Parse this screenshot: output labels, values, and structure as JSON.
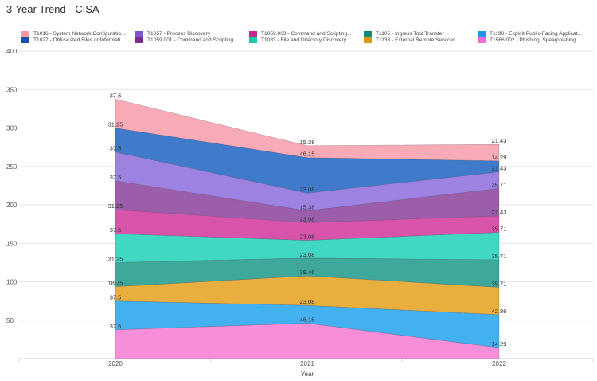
{
  "title": "3-Year Trend - CISA",
  "chart_data": {
    "type": "area",
    "stacked": true,
    "title": "3-Year Trend - CISA",
    "xlabel": "Year",
    "ylabel": "",
    "x": [
      "2020",
      "2021",
      "2022"
    ],
    "ylim": [
      0,
      400
    ],
    "yticks": [
      50,
      100,
      150,
      200,
      250,
      300,
      350,
      400
    ],
    "grid": true,
    "legend_position": "top",
    "series": [
      {
        "name": "T1566.002 - Phishing: Spearphishing...",
        "values": [
          37.5,
          46.15,
          14.29
        ],
        "color": "#f78ed9",
        "swatch": "#f56dcf"
      },
      {
        "name": "T1190 - Exploit Public-Facing Applicat...",
        "values": [
          37.5,
          23.08,
          42.86
        ],
        "color": "#43b0ef",
        "swatch": "#1898e0"
      },
      {
        "name": "T1133 - External Remote Services",
        "values": [
          18.75,
          38.46,
          35.71
        ],
        "color": "#e8ae3e",
        "swatch": "#db9a13"
      },
      {
        "name": "T1105 - Ingress Tool Transfer",
        "values": [
          31.25,
          23.08,
          35.71
        ],
        "color": "#3ea89b",
        "swatch": "#148a7c"
      },
      {
        "name": "T1083 - File and Directory Discovery",
        "values": [
          37.5,
          23.08,
          35.71
        ],
        "color": "#40d8c2",
        "swatch": "#1ec8ae"
      },
      {
        "name": "T1059.003 - Command and Scripting...",
        "values": [
          31.25,
          23.08,
          21.43
        ],
        "color": "#d853aa",
        "swatch": "#c2288e"
      },
      {
        "name": "T1059.001 - Command and Scripting ...",
        "values": [
          37.5,
          15.38,
          35.71
        ],
        "color": "#9c5eaa",
        "swatch": "#7b2b8c"
      },
      {
        "name": "T1057 - Process Discovery",
        "values": [
          37.5,
          23.08,
          21.43
        ],
        "color": "#9e82e2",
        "swatch": "#7c55d6"
      },
      {
        "name": "T1027 - Obfuscated Files or Informati...",
        "values": [
          31.25,
          46.15,
          14.29
        ],
        "color": "#3f7bca",
        "swatch": "#1b4fa8"
      },
      {
        "name": "T1016 - System Network Configuratio...",
        "values": [
          37.5,
          15.38,
          21.43
        ],
        "color": "#f8abb6",
        "swatch": "#f59aa5"
      }
    ],
    "legend_order": [
      "T1016 - System Network Configuratio...",
      "T1027 - Obfuscated Files or Informati...",
      "T1057 - Process Discovery",
      "T1059.001 - Command and Scripting ...",
      "T1059.003 - Command and Scripting...",
      "T1083 - File and Directory Discovery",
      "T1105 - Ingress Tool Transfer",
      "T1133 - External Remote Services",
      "T1190 - Exploit Public-Facing Applicat...",
      "T1566.002 - Phishing: Spearphishing..."
    ]
  }
}
